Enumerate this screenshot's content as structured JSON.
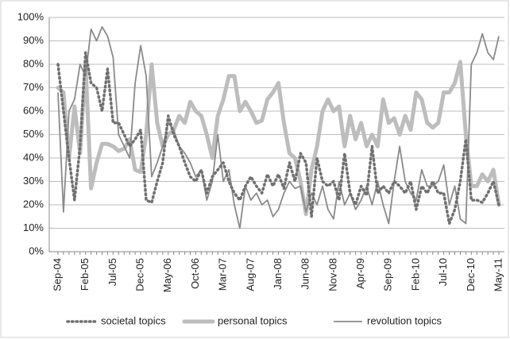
{
  "chart_data": {
    "type": "line",
    "categories": [
      "Sep-04",
      null,
      null,
      null,
      null,
      "Feb-05",
      null,
      null,
      null,
      null,
      "Jul-05",
      null,
      null,
      null,
      null,
      "Dec-05",
      null,
      null,
      null,
      null,
      "May-06",
      null,
      null,
      null,
      null,
      "Oct-06",
      null,
      null,
      null,
      null,
      "Mar-07",
      null,
      null,
      null,
      null,
      "Aug-07",
      null,
      null,
      null,
      null,
      "Jan-08",
      null,
      null,
      null,
      null,
      "Jun-08",
      null,
      null,
      null,
      null,
      "Nov-08",
      null,
      null,
      null,
      null,
      "Apr-09",
      null,
      null,
      null,
      null,
      "Sep-09",
      null,
      null,
      null,
      null,
      "Feb-10",
      null,
      null,
      null,
      null,
      "Jul-10",
      null,
      null,
      null,
      null,
      "Dec-10",
      null,
      null,
      null,
      null,
      "May-11"
    ],
    "series": [
      {
        "name": "societal topics",
        "color": "#707070",
        "values": [
          80,
          60,
          40,
          22,
          45,
          85,
          72,
          70,
          60,
          78,
          55,
          55,
          50,
          45,
          48,
          52,
          22,
          21,
          30,
          38,
          58,
          50,
          45,
          38,
          32,
          30,
          35,
          25,
          32,
          35,
          38,
          30,
          25,
          22,
          28,
          32,
          28,
          25,
          33,
          28,
          33,
          27,
          38,
          30,
          42,
          38,
          15,
          40,
          30,
          28,
          30,
          22,
          42,
          25,
          20,
          28,
          24,
          45,
          25,
          28,
          25,
          30,
          28,
          25,
          30,
          18,
          28,
          25,
          30,
          25,
          25,
          12,
          18,
          30,
          48,
          22,
          22,
          21,
          25,
          30,
          20
        ]
      },
      {
        "name": "personal topics",
        "color": "#bdbdbd",
        "values": [
          70,
          68,
          40,
          62,
          42,
          80,
          27,
          38,
          46,
          46,
          45,
          43,
          44,
          48,
          35,
          34,
          50,
          80,
          55,
          45,
          50,
          52,
          58,
          55,
          64,
          60,
          58,
          50,
          40,
          58,
          65,
          75,
          75,
          60,
          64,
          60,
          55,
          56,
          65,
          68,
          72,
          55,
          42,
          40,
          30,
          16,
          35,
          45,
          60,
          65,
          60,
          62,
          45,
          58,
          48,
          55,
          45,
          50,
          45,
          65,
          55,
          57,
          50,
          58,
          52,
          68,
          65,
          55,
          53,
          55,
          68,
          68,
          72,
          81,
          50,
          28,
          28,
          33,
          30,
          35,
          20
        ]
      },
      {
        "name": "revolution topics",
        "color": "#8a8a8a",
        "values": [
          68,
          17,
          60,
          65,
          80,
          75,
          95,
          90,
          96,
          92,
          83,
          50,
          45,
          40,
          72,
          88,
          75,
          32,
          38,
          45,
          55,
          52,
          45,
          42,
          38,
          32,
          35,
          22,
          30,
          50,
          30,
          35,
          20,
          10,
          28,
          22,
          25,
          20,
          22,
          15,
          18,
          25,
          30,
          27,
          28,
          17,
          25,
          20,
          28,
          18,
          14,
          30,
          20,
          25,
          18,
          22,
          28,
          20,
          30,
          20,
          12,
          30,
          45,
          30,
          25,
          22,
          35,
          28,
          28,
          30,
          37,
          20,
          28,
          14,
          12,
          80,
          85,
          93,
          85,
          82,
          92
        ]
      }
    ],
    "ylim": [
      0,
      100
    ],
    "yticks": [
      {
        "value": 0,
        "label": "0%"
      },
      {
        "value": 10,
        "label": "10%"
      },
      {
        "value": 20,
        "label": "20%"
      },
      {
        "value": 30,
        "label": "30%"
      },
      {
        "value": 40,
        "label": "40%"
      },
      {
        "value": 50,
        "label": "50%"
      },
      {
        "value": 60,
        "label": "60%"
      },
      {
        "value": 70,
        "label": "70%"
      },
      {
        "value": 80,
        "label": "80%"
      },
      {
        "value": 90,
        "label": "90%"
      },
      {
        "value": 100,
        "label": "100%"
      }
    ],
    "grid": true,
    "legend": "bottom"
  }
}
